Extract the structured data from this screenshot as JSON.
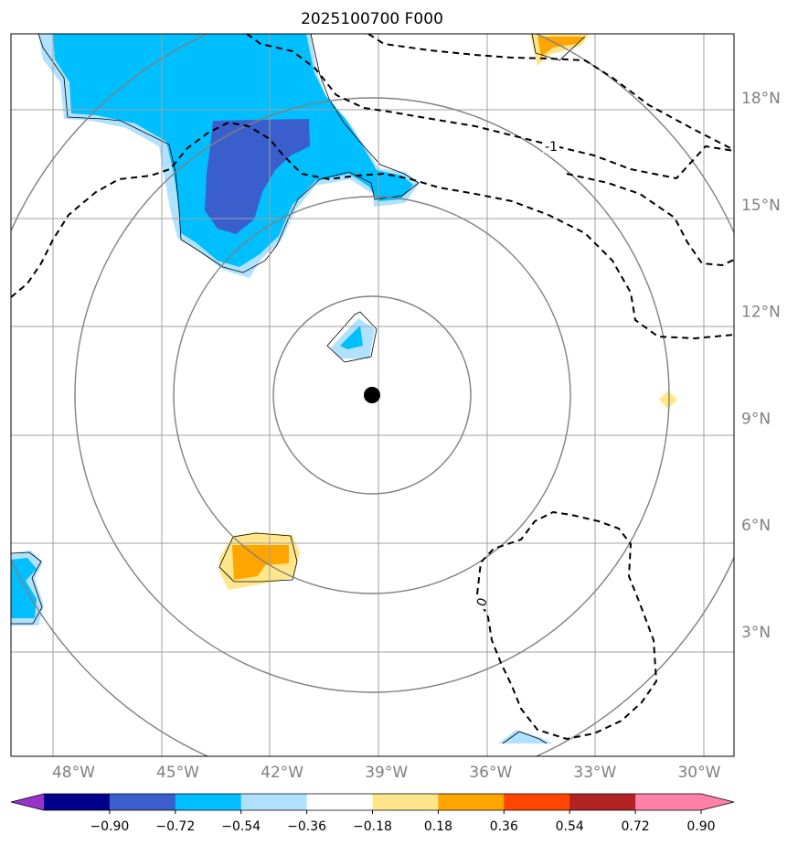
{
  "chart_data": {
    "type": "map",
    "title": "2025100700 F000",
    "xlim": [
      -49.8,
      -29.0
    ],
    "ylim": [
      -0.5,
      19.8
    ],
    "x_ticks": [
      -48,
      -45,
      -42,
      -39,
      -36,
      -33,
      -30
    ],
    "x_tick_labels": [
      "48°W",
      "45°W",
      "42°W",
      "39°W",
      "36°W",
      "33°W",
      "30°W"
    ],
    "y_ticks": [
      3,
      6,
      9,
      12,
      15,
      18
    ],
    "y_tick_labels": [
      "3°N",
      "6°N",
      "9°N",
      "12°N",
      "15°N",
      "18°N"
    ],
    "center": {
      "lon": -39.5,
      "lat": 10.0
    },
    "range_rings_deg": [
      2.75,
      5.5,
      8.25,
      11
    ],
    "contour_labels": [
      {
        "text": "-1",
        "lon": -34.7,
        "lat": 16.8
      },
      {
        "text": "0",
        "lon": -36.2,
        "lat": 4.4
      }
    ],
    "colorbar": {
      "extend": "both",
      "colors": [
        "#9932cc",
        "#00008b",
        "#3a5fcd",
        "#00bfff",
        "#b0e2ff",
        "#ffffff",
        "#ffe68a",
        "#ffa500",
        "#ff4500",
        "#b22222",
        "#ff80a8",
        "#ff80a8"
      ],
      "tick_labels": [
        "−0.90",
        "−0.72",
        "−0.54",
        "−0.36",
        "−0.18",
        "0.18",
        "0.36",
        "0.54",
        "0.72",
        "0.90"
      ]
    }
  }
}
